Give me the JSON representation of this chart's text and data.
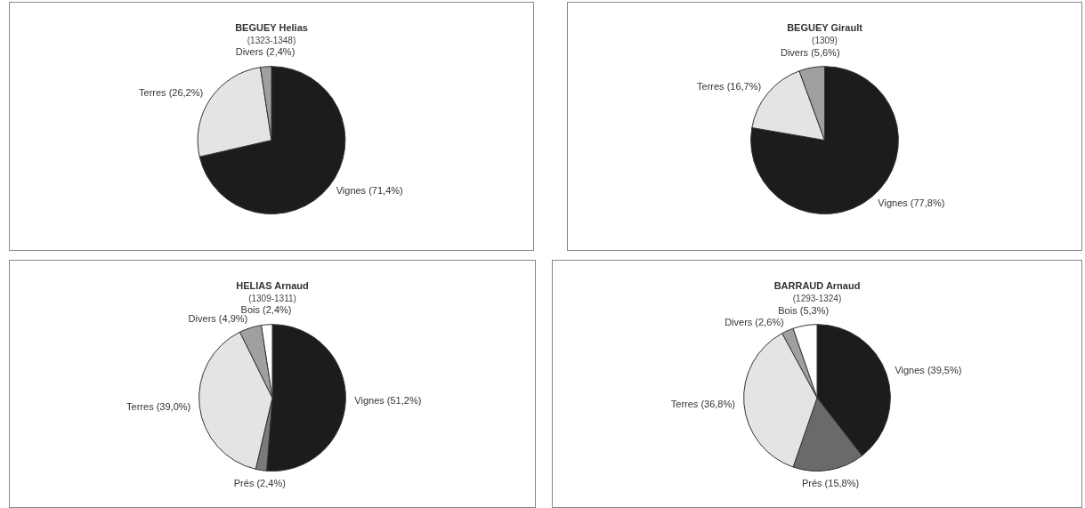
{
  "chart_data": [
    {
      "type": "pie",
      "title": "BEGUEY Helias",
      "subtitle": "(1323-1348)",
      "categories": [
        "Vignes",
        "Terres",
        "Divers"
      ],
      "values": [
        71.4,
        26.2,
        2.4
      ],
      "value_labels": [
        "(71,4%)",
        "(26,2%)",
        "(2,4%)"
      ],
      "colors": [
        "#1c1c1c",
        "#e4e4e4",
        "#a0a0a0"
      ],
      "legend": false
    },
    {
      "type": "pie",
      "title": "BEGUEY Girault",
      "subtitle": "(1309)",
      "categories": [
        "Vignes",
        "Terres",
        "Divers"
      ],
      "values": [
        77.8,
        16.7,
        5.6
      ],
      "value_labels": [
        "(77,8%)",
        "(16,7%)",
        "(5,6%)"
      ],
      "colors": [
        "#1c1c1c",
        "#e4e4e4",
        "#a0a0a0"
      ],
      "legend": false
    },
    {
      "type": "pie",
      "title": "HELIAS Arnaud",
      "subtitle": "(1309-1311)",
      "categories": [
        "Vignes",
        "Prés",
        "Terres",
        "Divers",
        "Bois"
      ],
      "values": [
        51.2,
        2.4,
        39.0,
        4.9,
        2.4
      ],
      "value_labels": [
        "(51,2%)",
        "(2,4%)",
        "(39,0%)",
        "(4,9%)",
        "(2,4%)"
      ],
      "colors": [
        "#1c1c1c",
        "#7a7a7a",
        "#e4e4e4",
        "#a0a0a0",
        "#ffffff"
      ],
      "legend": false
    },
    {
      "type": "pie",
      "title": "BARRAUD Arnaud",
      "subtitle": "(1293-1324)",
      "categories": [
        "Vignes",
        "Prés",
        "Terres",
        "Divers",
        "Bois"
      ],
      "values": [
        39.5,
        15.8,
        36.8,
        2.6,
        5.3
      ],
      "value_labels": [
        "(39,5%)",
        "(15,8%)",
        "(36,8%)",
        "(2,6%)",
        "(5,3%)"
      ],
      "colors": [
        "#1c1c1c",
        "#6a6a6a",
        "#e4e4e4",
        "#a0a0a0",
        "#ffffff"
      ],
      "legend": false
    }
  ]
}
